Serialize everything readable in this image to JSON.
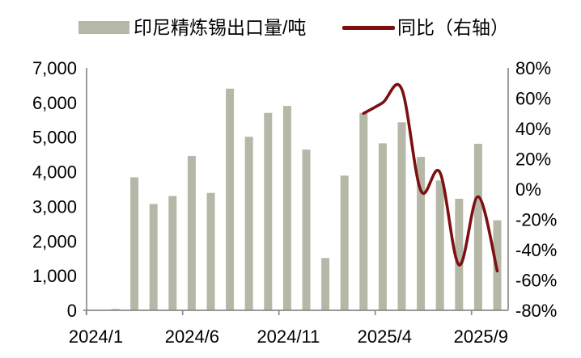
{
  "legend": {
    "bar_label": "印尼精炼锡出口量/吨",
    "line_label": "同比（右轴）"
  },
  "colors": {
    "bar": "#b5b8a6",
    "line": "#7c1011",
    "axis": "#8a8a8a",
    "text": "#000000",
    "background": "#ffffff"
  },
  "chart_data": {
    "type": "bar+line",
    "title": "",
    "categories": [
      "2024/1",
      "2024/2",
      "2024/3",
      "2024/4",
      "2024/5",
      "2024/6",
      "2024/7",
      "2024/8",
      "2024/9",
      "2024/10",
      "2024/11",
      "2024/12",
      "2025/1",
      "2025/2",
      "2025/3",
      "2025/4",
      "2025/5",
      "2025/6",
      "2025/7",
      "2025/8",
      "2025/9"
    ],
    "series": [
      {
        "name": "印尼精炼锡出口量/吨",
        "type": "bar",
        "axis": "left",
        "unit": "吨",
        "values": [
          40,
          3840,
          3070,
          3300,
          4460,
          3390,
          6400,
          5010,
          5700,
          5900,
          4640,
          1510,
          3890,
          5700,
          4820,
          5430,
          4430,
          3750,
          3220,
          4810,
          2600
        ]
      },
      {
        "name": "同比（右轴）",
        "type": "line",
        "axis": "right",
        "unit": "%",
        "start_index": 13,
        "values": [
          50,
          57,
          66,
          -1,
          11,
          -50,
          -5,
          -54
        ]
      }
    ],
    "left_axis": {
      "min": 0,
      "max": 7000,
      "tick_step": 1000,
      "tick_labels": [
        "0",
        "1,000",
        "2,000",
        "3,000",
        "4,000",
        "5,000",
        "6,000",
        "7,000"
      ]
    },
    "right_axis": {
      "min": -80,
      "max": 80,
      "tick_step": 20,
      "tick_labels": [
        "-80%",
        "-60%",
        "-40%",
        "-20%",
        "0%",
        "20%",
        "40%",
        "60%",
        "80%"
      ]
    },
    "x_axis": {
      "visible_labels": [
        "2024/1",
        "2024/6",
        "2024/11",
        "2025/4",
        "2025/9"
      ],
      "visible_label_indices": [
        0,
        5,
        10,
        15,
        20
      ]
    },
    "grid": false,
    "legend_position": "top",
    "line_style": "smoothed"
  }
}
